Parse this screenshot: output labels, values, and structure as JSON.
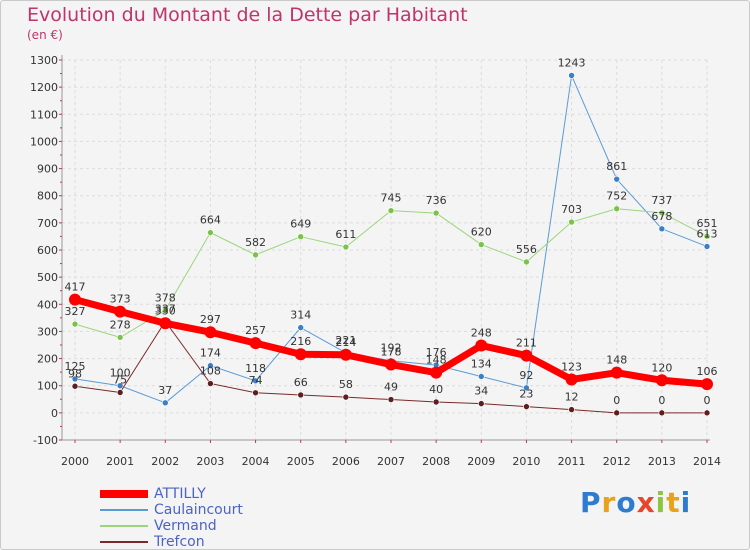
{
  "header": {
    "title": "Evolution du Montant de la Dette par Habitant",
    "subtitle": "(en €)"
  },
  "logo": {
    "text": "Proxiti",
    "colors": [
      "#2e7bcf",
      "#e8a21c",
      "#2e7bcf",
      "#e8462a",
      "#8cc63f",
      "#e8a21c",
      "#2e7bcf"
    ]
  },
  "chart_data": {
    "type": "line",
    "x": [
      "2000",
      "2001",
      "2002",
      "2003",
      "2004",
      "2005",
      "2006",
      "2007",
      "2008",
      "2009",
      "2010",
      "2011",
      "2012",
      "2013",
      "2014"
    ],
    "ylim": [
      -100,
      1300
    ],
    "yticks": [
      -100,
      0,
      100,
      200,
      300,
      400,
      500,
      600,
      700,
      800,
      900,
      1000,
      1100,
      1200,
      1300
    ],
    "grid": true,
    "legend_position": "bottom-left",
    "series": [
      {
        "name": "Caulaincourt",
        "color": "#5b9bd5",
        "marker": "#3b7fc4",
        "width": 1,
        "values": [
          125,
          100,
          37,
          174,
          118,
          314,
          221,
          192,
          176,
          134,
          92,
          1243,
          861,
          678,
          613
        ]
      },
      {
        "name": "Vermand",
        "color": "#9bd57a",
        "marker": "#7cc24a",
        "width": 1,
        "values": [
          327,
          278,
          378,
          664,
          582,
          649,
          611,
          745,
          736,
          620,
          556,
          703,
          752,
          737,
          651
        ]
      },
      {
        "name": "Trefcon",
        "color": "#7a2a2a",
        "marker": "#5e1e1e",
        "width": 1,
        "values": [
          98,
          75,
          337,
          108,
          74,
          66,
          58,
          49,
          40,
          34,
          23,
          12,
          0,
          0,
          0
        ]
      },
      {
        "name": "ATTILLY",
        "color": "#ff0000",
        "marker": "#ff0000",
        "width": 7,
        "values": [
          417,
          373,
          330,
          297,
          257,
          216,
          214,
          178,
          148,
          248,
          211,
          123,
          148,
          120,
          106
        ]
      }
    ],
    "legend_order": [
      "ATTILLY",
      "Caulaincourt",
      "Vermand",
      "Trefcon"
    ]
  }
}
